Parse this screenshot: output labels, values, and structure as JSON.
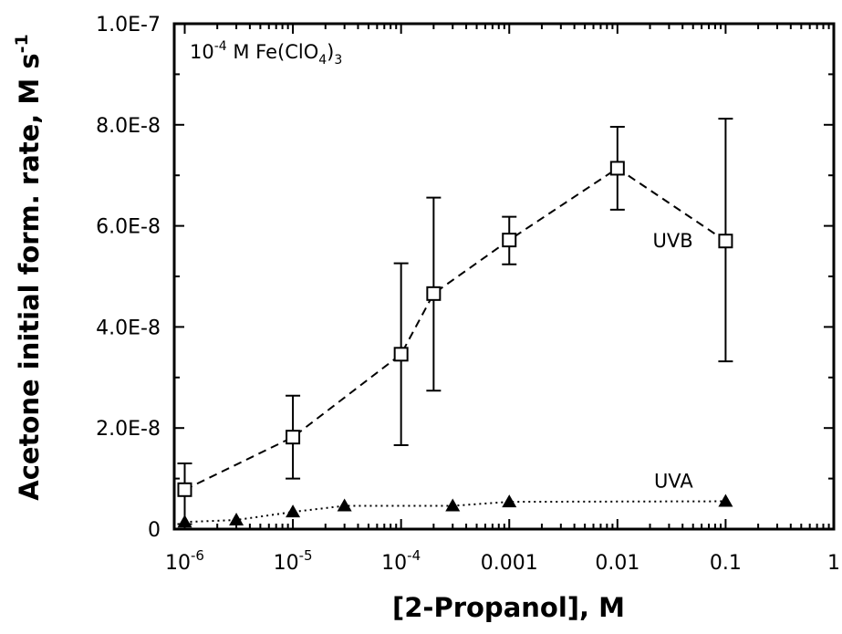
{
  "chart_data": {
    "type": "scatter",
    "xscale": "log",
    "xlim": [
      8e-07,
      1
    ],
    "ylim": [
      0,
      1e-07
    ],
    "xlabel": "[2-Propanol], M",
    "ylabel": "Acetone initial form. rate, M s",
    "ylabel_sup": "-1",
    "annotation": {
      "base": "10",
      "exp": "-4",
      "mid": " M Fe(ClO",
      "sub": "4",
      "end": ")",
      "sub2": "3"
    },
    "x_ticks": [
      {
        "value": 1e-06,
        "base": "10",
        "exp": "-6"
      },
      {
        "value": 1e-05,
        "base": "10",
        "exp": "-5"
      },
      {
        "value": 0.0001,
        "base": "10",
        "exp": "-4"
      },
      {
        "value": 0.001,
        "label": "0.001"
      },
      {
        "value": 0.01,
        "label": "0.01"
      },
      {
        "value": 0.1,
        "label": "0.1"
      },
      {
        "value": 1,
        "label": "1"
      }
    ],
    "y_ticks": [
      {
        "value": 0,
        "label": "0"
      },
      {
        "value": 2e-08,
        "label": "2.0E-8"
      },
      {
        "value": 4e-08,
        "label": "4.0E-8"
      },
      {
        "value": 6e-08,
        "label": "6.0E-8"
      },
      {
        "value": 8e-08,
        "label": "8.0E-8"
      },
      {
        "value": 1e-07,
        "label": "1.0E-7"
      }
    ],
    "series": [
      {
        "name": "UVB",
        "marker": "open-square",
        "line": "dashed",
        "x": [
          1e-06,
          1e-05,
          0.0001,
          0.0002,
          0.001,
          0.01,
          0.1
        ],
        "y": [
          7.8e-09,
          1.82e-08,
          3.46e-08,
          4.66e-08,
          5.72e-08,
          7.14e-08,
          5.7e-08
        ],
        "err_low": [
          1e-09,
          1e-08,
          1.66e-08,
          2.74e-08,
          5.24e-08,
          6.32e-08,
          3.32e-08
        ],
        "err_high": [
          1.3e-08,
          2.64e-08,
          5.26e-08,
          6.56e-08,
          6.18e-08,
          7.96e-08,
          8.12e-08
        ],
        "label_at": [
          0.05,
          5.7e-08
        ]
      },
      {
        "name": "UVA",
        "marker": "filled-triangle",
        "line": "dotted",
        "x": [
          1e-06,
          3e-06,
          1e-05,
          3e-05,
          0.0003,
          0.001,
          0.1
        ],
        "y": [
          1.4e-09,
          1.8e-09,
          3.4e-09,
          4.6e-09,
          4.6e-09,
          5.4e-09,
          5.5e-09
        ],
        "label_at": [
          0.05,
          9.5e-09
        ]
      }
    ]
  }
}
